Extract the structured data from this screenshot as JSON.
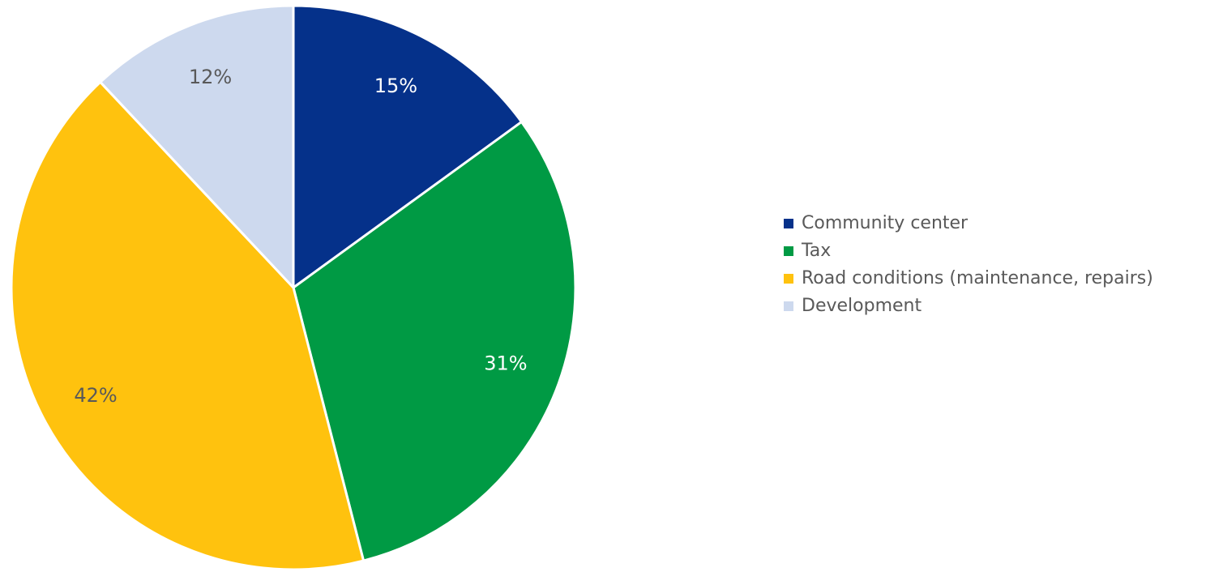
{
  "chart_data": {
    "type": "pie",
    "title": "",
    "categories": [
      "Community center",
      "Tax",
      "Road conditions (maintenance, repairs)",
      "Development"
    ],
    "values": [
      15,
      31,
      42,
      12
    ],
    "value_labels": [
      "15%",
      "31%",
      "42%",
      "12%"
    ],
    "colors": [
      "#05318A",
      "#009A44",
      "#FFC20E",
      "#CDD9EE"
    ],
    "label_colors": [
      "#ffffff",
      "#ffffff",
      "#595959",
      "#595959"
    ],
    "legend_position": "right",
    "start_angle_deg": 0,
    "direction": "clockwise"
  }
}
